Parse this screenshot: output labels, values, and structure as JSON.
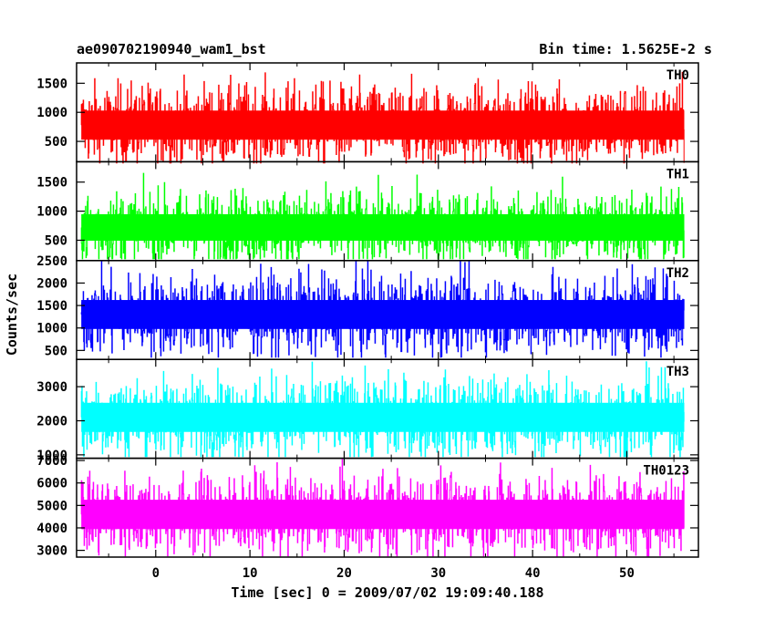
{
  "chart_data": {
    "type": "line",
    "title_left": "ae090702190940_wam1_bst",
    "title_right": "Bin time: 1.5625E-2 s",
    "xlabel": "Time [sec] 0 = 2009/07/02 19:09:40.188",
    "ylabel": "Counts/sec",
    "xlim": [
      -8.4,
      57.6
    ],
    "x_ticks": [
      0,
      10,
      20,
      30,
      40,
      50
    ],
    "data_x_range": [
      -7.9,
      56.1
    ],
    "grid": false,
    "panels": [
      {
        "name": "TH0",
        "color": "#ff0000",
        "ylim": [
          150,
          1850
        ],
        "y_ticks": [
          500,
          1000,
          1500
        ],
        "mean": 780,
        "low": 130,
        "high": 1800
      },
      {
        "name": "TH1",
        "color": "#00ff00",
        "ylim": [
          150,
          1850
        ],
        "y_ticks": [
          500,
          1000,
          1500
        ],
        "mean": 720,
        "low": 180,
        "high": 1700
      },
      {
        "name": "TH2",
        "color": "#0000ff",
        "ylim": [
          300,
          2500
        ],
        "y_ticks": [
          500,
          1000,
          1500,
          2000,
          2500
        ],
        "mean": 1300,
        "low": 350,
        "high": 2500
      },
      {
        "name": "TH3",
        "color": "#00ffff",
        "ylim": [
          900,
          3800
        ],
        "y_ticks": [
          1000,
          2000,
          3000
        ],
        "mean": 2100,
        "low": 950,
        "high": 3800
      },
      {
        "name": "TH0123",
        "color": "#ff00ff",
        "ylim": [
          2700,
          7100
        ],
        "y_ticks": [
          3000,
          4000,
          5000,
          6000,
          7000
        ],
        "mean": 4600,
        "low": 2750,
        "high": 7100
      }
    ]
  }
}
